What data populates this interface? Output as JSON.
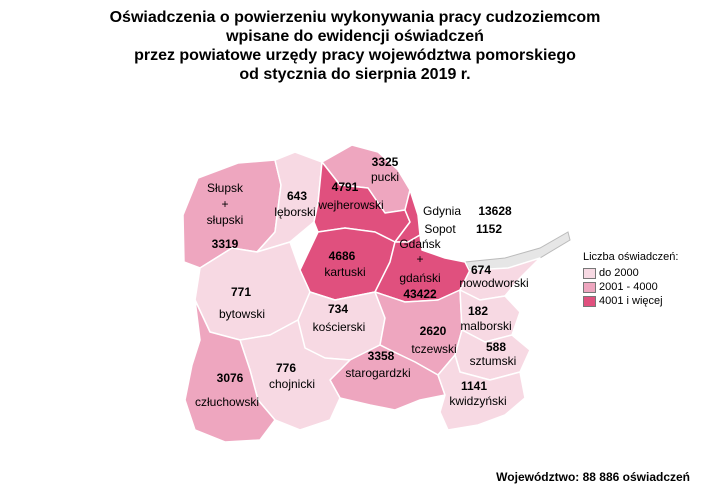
{
  "title_lines": [
    "Oświadczenia o powierzeniu wykonywania pracy cudzoziemcom",
    "wpisane do ewidencji oświadczeń",
    "przez powiatowe urzędy pracy województwa pomorskiego",
    "od stycznia do sierpnia 2019 r."
  ],
  "colors": {
    "low": "#f7d9e3",
    "mid": "#eea6bf",
    "high": "#e0507e",
    "border": "#ffffff",
    "sea": "#e6e6e6"
  },
  "regions": {
    "slupsk": {
      "name1": "Słupsk",
      "plus": "+",
      "name2": "słupski",
      "value": "3319",
      "class": "mid"
    },
    "leborski": {
      "name": "lęborski",
      "value": "643",
      "class": "low"
    },
    "pucki": {
      "name": "pucki",
      "value": "3325",
      "class": "mid"
    },
    "wejherowski": {
      "name": "wejherowski",
      "value": "4791",
      "class": "high"
    },
    "kartuski": {
      "name": "kartuski",
      "value": "4686",
      "class": "high"
    },
    "gdansk": {
      "name1": "Gdańsk",
      "plus": "+",
      "name2": "gdański",
      "value": "43422",
      "class": "high"
    },
    "gdynia": {
      "name": "Gdynia",
      "value": "13628"
    },
    "sopot": {
      "name": "Sopot",
      "value": "1152"
    },
    "nowodworski": {
      "name": "nowodworski",
      "value": "674",
      "class": "low"
    },
    "bytowski": {
      "name": "bytowski",
      "value": "771",
      "class": "low"
    },
    "koscierski": {
      "name": "kościerski",
      "value": "734",
      "class": "low"
    },
    "tczewski": {
      "name": "tczewski",
      "value": "2620",
      "class": "mid"
    },
    "malborski": {
      "name": "malborski",
      "value": "182",
      "class": "low"
    },
    "sztumski": {
      "name": "sztumski",
      "value": "588",
      "class": "low"
    },
    "starogardzki": {
      "name": "starogardzki",
      "value": "3358",
      "class": "mid"
    },
    "chojnicki": {
      "name": "chojnicki",
      "value": "776",
      "class": "low"
    },
    "czluchowski": {
      "name": "człuchowski",
      "value": "3076",
      "class": "mid"
    },
    "kwidzynski": {
      "name": "kwidzyński",
      "value": "1141",
      "class": "low"
    }
  },
  "legend": {
    "title": "Liczba oświadczeń:",
    "items": [
      {
        "label": "do 2000",
        "color": "#f7d9e3"
      },
      {
        "label": "2001 - 4000",
        "color": "#eea6bf"
      },
      {
        "label": "4001 i więcej",
        "color": "#e0507e"
      }
    ]
  },
  "footer": "Województwo: 88 886 oświadczeń"
}
